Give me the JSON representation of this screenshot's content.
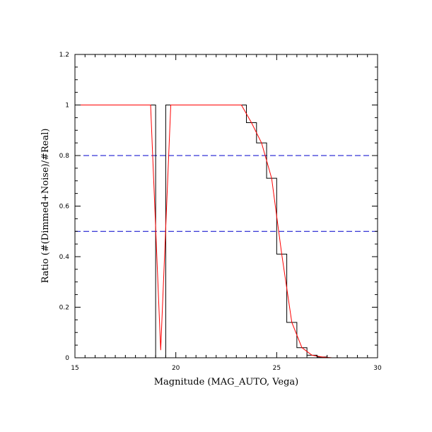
{
  "chart_data": {
    "type": "line",
    "title": "",
    "xlabel": "Magnitude (MAG_AUTO, Vega)",
    "ylabel": "Ratio (#(Dimmed+Noise)/#Real)",
    "xlim": [
      15,
      30
    ],
    "ylim": [
      0,
      1.2
    ],
    "x_ticks": [
      15,
      20,
      25,
      30
    ],
    "x_tick_labels": [
      "15",
      "20",
      "25",
      "30"
    ],
    "y_ticks": [
      0,
      0.2,
      0.4,
      0.6,
      0.8,
      1,
      1.2
    ],
    "y_tick_labels": [
      "0",
      "0.2",
      "0.4",
      "0.6",
      "0.8",
      "1",
      "1.2"
    ],
    "grid": false,
    "reference_lines": [
      {
        "y": 0.8,
        "style": "dashed",
        "color": "#0000cc"
      },
      {
        "y": 0.5,
        "style": "dashed",
        "color": "#0000cc"
      }
    ],
    "series": [
      {
        "style": "histogram-step",
        "color": "#000000",
        "bin_edges": [
          15,
          15.5,
          16,
          16.5,
          17,
          17.5,
          18,
          18.5,
          19,
          19.5,
          20,
          20.5,
          21,
          21.5,
          22,
          22.5,
          23,
          23.5,
          24,
          24.5,
          25,
          25.5,
          26,
          26.5,
          27,
          27.5,
          28,
          28.5,
          29,
          29.5,
          30
        ],
        "values": [
          1,
          1,
          1,
          1,
          1,
          1,
          1,
          1,
          0,
          1,
          1,
          1,
          1,
          1,
          1,
          1,
          1,
          0.93,
          0.85,
          0.71,
          0.41,
          0.14,
          0.04,
          0.01,
          0.003,
          0,
          0,
          0,
          0,
          0
        ]
      },
      {
        "style": "line",
        "color": "#ff0000",
        "x": [
          15,
          18.75,
          19.25,
          19.75,
          20.25,
          23.25,
          23.75,
          24.25,
          24.75,
          25.25,
          25.75,
          26.25,
          26.75,
          27.25,
          27.75,
          30
        ],
        "y": [
          1,
          1,
          0.03,
          1,
          1,
          1,
          0.93,
          0.85,
          0.71,
          0.41,
          0.14,
          0.04,
          0.01,
          0.003,
          0,
          0
        ]
      }
    ]
  }
}
